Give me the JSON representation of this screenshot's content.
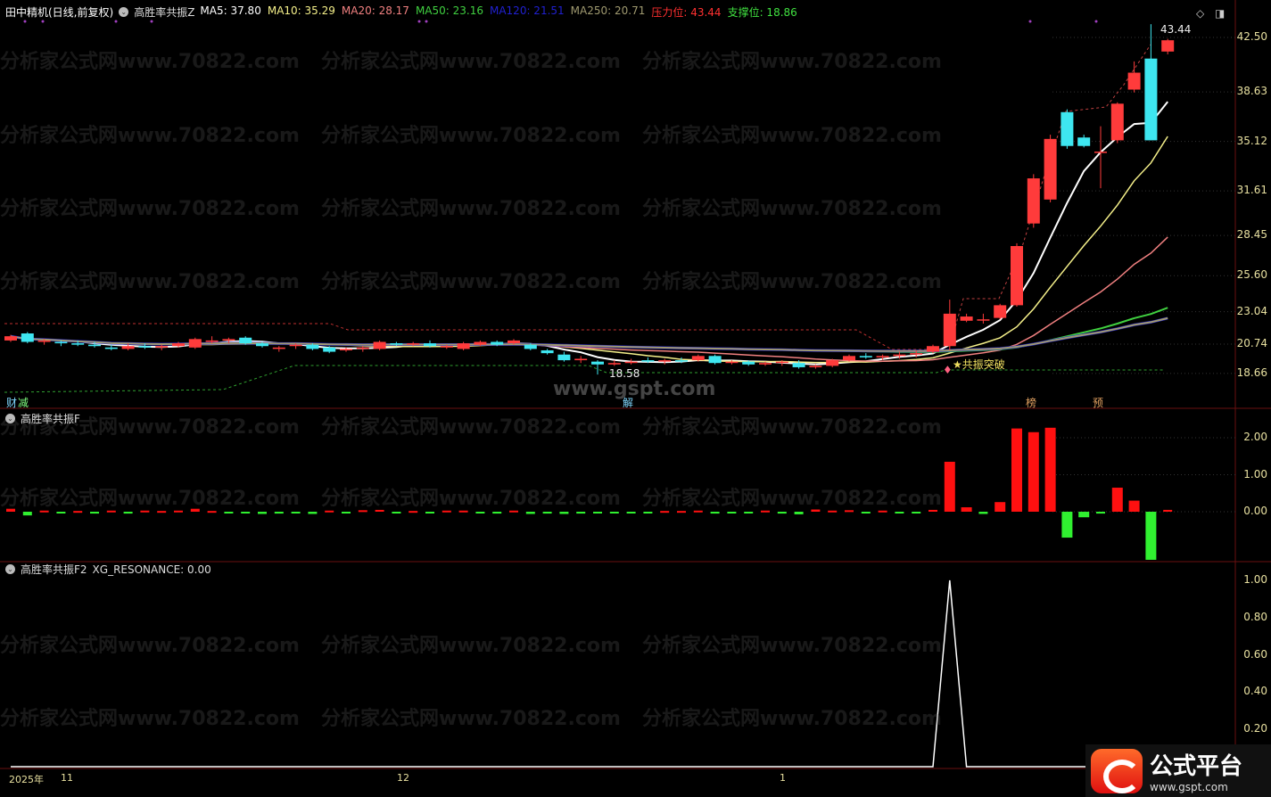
{
  "header": {
    "stock": "田中精机(日线,前复权)",
    "indicator": "高胜率共振Z",
    "ma": [
      {
        "label": "MA5: 37.80",
        "color": "#ffffff"
      },
      {
        "label": "MA10: 35.29",
        "color": "#f5f08a"
      },
      {
        "label": "MA20: 28.17",
        "color": "#f08080"
      },
      {
        "label": "MA50: 23.16",
        "color": "#40d040"
      },
      {
        "label": "MA120: 21.51",
        "color": "#2020d0"
      },
      {
        "label": "MA250: 20.71",
        "color": "#a09a70"
      },
      {
        "label": "压力位: 43.44",
        "color": "#ff3030"
      },
      {
        "label": "支撑位: 18.86",
        "color": "#40e040"
      }
    ]
  },
  "panel_f": {
    "title": "高胜率共振F"
  },
  "panel_f2": {
    "title": "高胜率共振F2",
    "value_label": "XG_RESONANCE: 0.00"
  },
  "annotations": {
    "high": "43.44",
    "low": "18.58",
    "signal": "★共振突破",
    "tags": [
      {
        "text": "财",
        "color": "#7fd8ff"
      },
      {
        "text": "减",
        "color": "#7fff7f"
      },
      {
        "text": "解",
        "color": "#7fd8ff"
      },
      {
        "text": "榜",
        "color": "#e0a060"
      },
      {
        "text": "预",
        "color": "#e0a060"
      }
    ]
  },
  "dates": {
    "year": "2025年",
    "m11": "11",
    "m12": "12",
    "m1": "1"
  },
  "watermark": "分析家公式网www.70822.com",
  "watermark2": "www.gspt.com",
  "logo": {
    "name": "公式平台",
    "url": "www.gspt.com"
  },
  "colors": {
    "up": "#ff3b3b",
    "down": "#3ee6f0",
    "f_up": "#ff1010",
    "f_down": "#30f030",
    "spike": "#ffffff"
  },
  "chart_data": [
    {
      "type": "candlestick",
      "title": "田中精机(日线,前复权)",
      "y_ticks": [
        42.5,
        38.63,
        35.12,
        31.61,
        28.45,
        25.6,
        23.04,
        20.74,
        18.66
      ],
      "ylim": [
        17.5,
        44
      ],
      "ohlc": [
        [
          21.0,
          21.4,
          20.9,
          21.3
        ],
        [
          21.5,
          21.6,
          20.8,
          20.9
        ],
        [
          20.9,
          21.1,
          20.7,
          21.0
        ],
        [
          20.9,
          21.0,
          20.6,
          20.8
        ],
        [
          20.8,
          21.0,
          20.6,
          20.7
        ],
        [
          20.7,
          20.9,
          20.5,
          20.6
        ],
        [
          20.5,
          20.7,
          20.3,
          20.4
        ],
        [
          20.4,
          20.8,
          20.3,
          20.6
        ],
        [
          20.6,
          20.8,
          20.4,
          20.5
        ],
        [
          20.5,
          20.7,
          20.3,
          20.6
        ],
        [
          20.6,
          20.9,
          20.5,
          20.8
        ],
        [
          20.5,
          21.2,
          20.4,
          21.1
        ],
        [
          20.9,
          21.3,
          20.8,
          21.0
        ],
        [
          21.0,
          21.2,
          20.8,
          21.1
        ],
        [
          21.2,
          21.3,
          20.7,
          20.8
        ],
        [
          20.8,
          20.9,
          20.5,
          20.6
        ],
        [
          20.4,
          20.6,
          20.2,
          20.5
        ],
        [
          20.6,
          20.8,
          20.4,
          20.7
        ],
        [
          20.7,
          20.8,
          20.3,
          20.4
        ],
        [
          20.5,
          20.6,
          20.1,
          20.2
        ],
        [
          20.3,
          20.5,
          20.2,
          20.4
        ],
        [
          20.4,
          20.6,
          20.2,
          20.5
        ],
        [
          20.4,
          21.0,
          20.3,
          20.9
        ],
        [
          20.8,
          20.9,
          20.6,
          20.7
        ],
        [
          20.8,
          20.9,
          20.6,
          20.8
        ],
        [
          20.8,
          21.0,
          20.5,
          20.6
        ],
        [
          20.5,
          20.7,
          20.4,
          20.6
        ],
        [
          20.4,
          20.9,
          20.3,
          20.8
        ],
        [
          20.7,
          21.0,
          20.6,
          20.9
        ],
        [
          20.9,
          21.0,
          20.6,
          20.7
        ],
        [
          20.8,
          21.1,
          20.7,
          21.0
        ],
        [
          20.7,
          20.8,
          20.3,
          20.4
        ],
        [
          20.3,
          20.4,
          20.0,
          20.1
        ],
        [
          20.0,
          20.2,
          19.5,
          19.6
        ],
        [
          19.6,
          19.9,
          19.4,
          19.7
        ],
        [
          19.5,
          19.6,
          18.58,
          19.3
        ],
        [
          19.3,
          19.6,
          19.2,
          19.4
        ],
        [
          19.4,
          19.7,
          19.3,
          19.5
        ],
        [
          19.6,
          19.8,
          19.4,
          19.5
        ],
        [
          19.5,
          19.7,
          19.3,
          19.6
        ],
        [
          19.6,
          19.8,
          19.4,
          19.5
        ],
        [
          19.6,
          20.0,
          19.5,
          19.9
        ],
        [
          19.9,
          20.0,
          19.3,
          19.4
        ],
        [
          19.4,
          19.6,
          19.3,
          19.5
        ],
        [
          19.5,
          19.6,
          19.2,
          19.3
        ],
        [
          19.3,
          19.5,
          19.2,
          19.4
        ],
        [
          19.4,
          19.6,
          19.2,
          19.5
        ],
        [
          19.4,
          19.6,
          19.0,
          19.1
        ],
        [
          19.1,
          19.3,
          19.0,
          19.2
        ],
        [
          19.2,
          19.7,
          19.1,
          19.6
        ],
        [
          19.6,
          20.0,
          19.5,
          19.9
        ],
        [
          19.9,
          20.1,
          19.7,
          19.8
        ],
        [
          19.8,
          20.0,
          19.6,
          19.9
        ],
        [
          19.9,
          20.2,
          19.7,
          20.0
        ],
        [
          20.0,
          20.3,
          19.8,
          20.1
        ],
        [
          20.2,
          20.7,
          20.1,
          20.6
        ],
        [
          20.6,
          23.9,
          20.3,
          22.9
        ],
        [
          22.4,
          22.9,
          22.3,
          22.7
        ],
        [
          22.5,
          22.9,
          22.2,
          22.5
        ],
        [
          22.6,
          23.6,
          22.5,
          23.5
        ],
        [
          23.5,
          27.9,
          23.4,
          27.7
        ],
        [
          29.3,
          32.8,
          29.0,
          32.5
        ],
        [
          31.0,
          35.6,
          30.8,
          35.3
        ],
        [
          37.2,
          37.4,
          34.6,
          34.8
        ],
        [
          35.4,
          35.6,
          34.7,
          34.8
        ],
        [
          34.4,
          36.2,
          31.8,
          34.4
        ],
        [
          35.2,
          37.9,
          35.0,
          37.8
        ],
        [
          38.8,
          40.8,
          38.6,
          40.0
        ],
        [
          41.0,
          43.44,
          35.2,
          35.2
        ],
        [
          41.5,
          42.4,
          41.3,
          42.3
        ]
      ],
      "moving_averages": [
        "MA5",
        "MA10",
        "MA20",
        "MA50",
        "MA120",
        "MA250"
      ]
    },
    {
      "type": "bar",
      "title": "高胜率共振F",
      "y_ticks": [
        2.0,
        1.0,
        0.0
      ],
      "ylim": [
        -1.4,
        2.3
      ],
      "values": [
        0.08,
        -0.1,
        0.03,
        -0.04,
        0.02,
        -0.05,
        0.03,
        -0.05,
        0.03,
        0.02,
        0.03,
        0.08,
        0.02,
        -0.04,
        -0.04,
        -0.06,
        -0.05,
        -0.04,
        -0.06,
        0.03,
        -0.03,
        0.04,
        0.05,
        -0.03,
        0.02,
        -0.04,
        0.03,
        0.03,
        -0.04,
        -0.05,
        0.03,
        -0.06,
        -0.05,
        -0.06,
        -0.05,
        -0.03,
        -0.04,
        -0.04,
        -0.03,
        0.02,
        0.02,
        0.03,
        -0.05,
        -0.04,
        -0.04,
        0.03,
        -0.05,
        -0.07,
        0.06,
        0.03,
        0.04,
        -0.03,
        0.03,
        -0.04,
        -0.04,
        0.05,
        1.35,
        0.12,
        -0.06,
        0.26,
        2.25,
        2.15,
        2.27,
        -0.7,
        -0.15,
        -0.05,
        0.65,
        0.3,
        -1.3,
        0.05
      ]
    },
    {
      "type": "line",
      "title": "高胜率共振F2",
      "series": [
        {
          "name": "XG_RESONANCE"
        }
      ],
      "y_ticks": [
        1.0,
        0.8,
        0.6,
        0.4,
        0.2
      ],
      "ylim": [
        0,
        1.05
      ],
      "spike_index": 56
    }
  ]
}
